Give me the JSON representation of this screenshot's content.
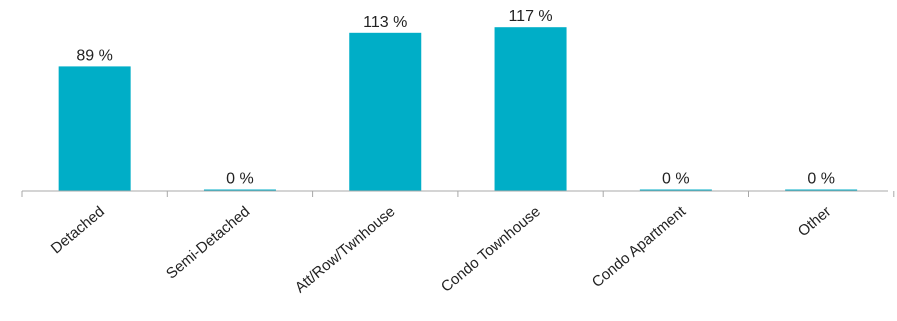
{
  "chart_data": {
    "type": "bar",
    "categories": [
      "Detached",
      "Semi-Detached",
      "Att/Row/Twnhouse",
      "Condo Townhouse",
      "Condo Apartment",
      "Other"
    ],
    "values": [
      89,
      0,
      113,
      117,
      0,
      0
    ],
    "data_labels": [
      "89 %",
      "0 %",
      "113 %",
      "117 %",
      "0 %",
      "0 %"
    ],
    "unit": "%",
    "ylim": [
      0,
      135
    ],
    "grid": false,
    "colors": {
      "bar": "#00aec7",
      "axis": "#a8a8a8"
    }
  }
}
